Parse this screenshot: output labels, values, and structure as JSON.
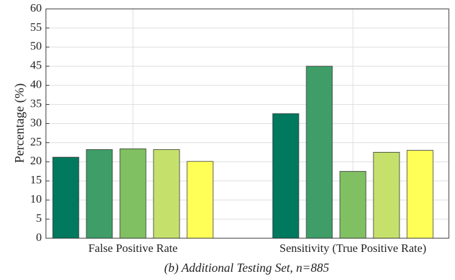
{
  "chart_data": {
    "type": "bar",
    "title": "(b) Additional Testing Set, n=885",
    "y_label": "Percentage (%)",
    "categories": [
      "False Positive Rate",
      "Sensitivity (True Positive Rate)"
    ],
    "series": [
      {
        "color": "#00795f",
        "values": [
          21.2,
          32.6
        ]
      },
      {
        "color": "#3f9e68",
        "values": [
          23.2,
          45.0
        ]
      },
      {
        "color": "#80c062",
        "values": [
          23.4,
          17.5
        ]
      },
      {
        "color": "#c6e06c",
        "values": [
          23.2,
          22.5
        ]
      },
      {
        "color": "#ffff58",
        "values": [
          20.1,
          23.0
        ]
      }
    ],
    "ylim": [
      0,
      60
    ],
    "yticks": [
      0,
      5,
      10,
      15,
      20,
      25,
      30,
      35,
      40,
      45,
      50,
      55,
      60
    ],
    "grid": true
  }
}
